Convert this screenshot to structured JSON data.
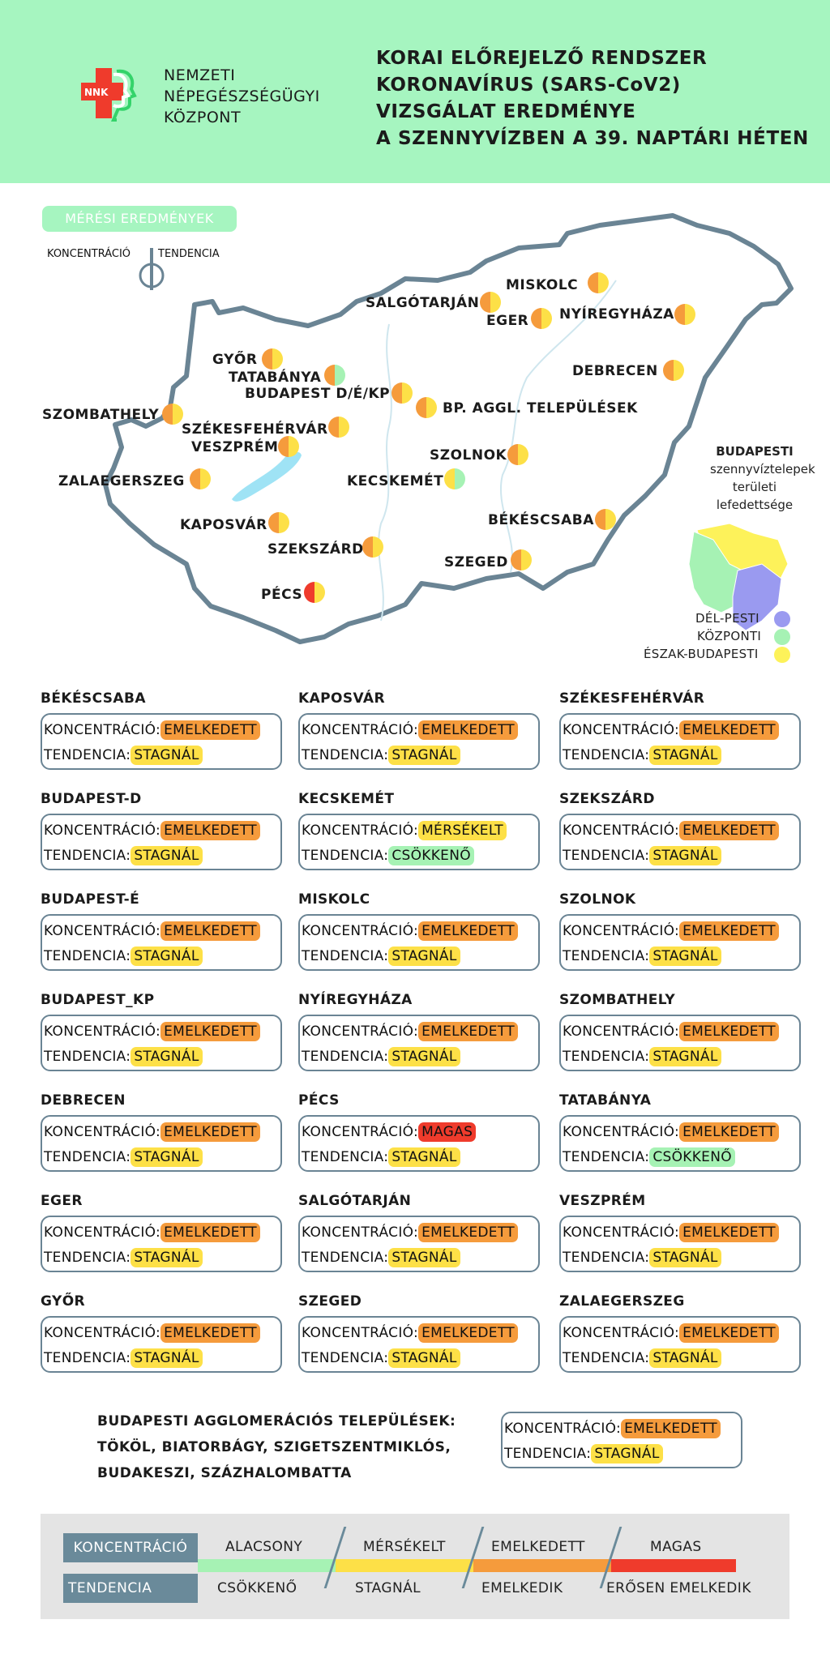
{
  "header": {
    "org_lines": [
      "NEMZETI",
      "NÉPEGÉSZSÉGÜGYI",
      "KÖZPONT"
    ],
    "logo_text": "NNK",
    "title_lines": [
      "KORAI ELŐREJELZŐ RENDSZER",
      "KORONAVÍRUS (SARS-CoV2)",
      "VIZSGÁLAT EREDMÉNYE",
      "A SZENNYVÍZBEN A 39. NAPTÁRI HÉTEN"
    ]
  },
  "colors": {
    "alacsony": "#a6f2b4",
    "merseklet": "#fde047",
    "emelkedett": "#f59b3c",
    "magas": "#ef3b2c",
    "header": "#a6f5c0",
    "border": "#6a8494"
  },
  "map": {
    "meres_label": "MÉRÉSI EREDMÉNYEK",
    "koncentracio_label": "KONCENTRÁCIÓ",
    "tendencia_label": "TENDENCIA",
    "cities": [
      {
        "name": "MISKOLC",
        "c": "emelkedett",
        "t": "merseklet"
      },
      {
        "name": "SALGÓTARJÁN",
        "c": "emelkedett",
        "t": "merseklet"
      },
      {
        "name": "EGER",
        "c": "emelkedett",
        "t": "merseklet"
      },
      {
        "name": "NYÍREGYHÁZA",
        "c": "emelkedett",
        "t": "merseklet"
      },
      {
        "name": "GYŐR",
        "c": "emelkedett",
        "t": "merseklet"
      },
      {
        "name": "TATABÁNYA",
        "c": "emelkedett",
        "t": "alacsony"
      },
      {
        "name": "DEBRECEN",
        "c": "emelkedett",
        "t": "merseklet"
      },
      {
        "name": "BUDAPEST D/É/KP",
        "c": "emelkedett",
        "t": "merseklet"
      },
      {
        "name": "BP. AGGL. TELEPÜLÉSEK",
        "c": "emelkedett",
        "t": "merseklet"
      },
      {
        "name": "SZOMBATHELY",
        "c": "emelkedett",
        "t": "merseklet"
      },
      {
        "name": "SZÉKESFEHÉRVÁR",
        "c": "emelkedett",
        "t": "merseklet"
      },
      {
        "name": "VESZPRÉM",
        "c": "emelkedett",
        "t": "merseklet"
      },
      {
        "name": "SZOLNOK",
        "c": "emelkedett",
        "t": "merseklet"
      },
      {
        "name": "ZALAEGERSZEG",
        "c": "emelkedett",
        "t": "merseklet"
      },
      {
        "name": "KECSKEMÉT",
        "c": "merseklet",
        "t": "alacsony"
      },
      {
        "name": "BÉKÉSCSABA",
        "c": "emelkedett",
        "t": "merseklet"
      },
      {
        "name": "KAPOSVÁR",
        "c": "emelkedett",
        "t": "merseklet"
      },
      {
        "name": "SZEKSZÁRD",
        "c": "emelkedett",
        "t": "merseklet"
      },
      {
        "name": "SZEGED",
        "c": "emelkedett",
        "t": "merseklet"
      },
      {
        "name": "PÉCS",
        "c": "magas",
        "t": "merseklet"
      }
    ],
    "budapest_title_bold": "BUDAPESTI",
    "budapest_title_lines": [
      "szennyvíztelepek",
      "területi",
      "lefedettsége"
    ],
    "budapest_legend": [
      {
        "label": "DÉL-PESTI",
        "color": "#9a9af0"
      },
      {
        "label": "KÖZPONTI",
        "color": "#a6f2b4"
      },
      {
        "label": "ÉSZAK-BUDAPESTI",
        "color": "#fdf25a"
      }
    ]
  },
  "cards": [
    {
      "name": "BÉKÉSCSABA",
      "c_label": "KONCENTRÁCIÓ:",
      "c": "EMELKEDETT",
      "t_label": "TENDENCIA:",
      "t": "STAGNÁL"
    },
    {
      "name": "KAPOSVÁR",
      "c_label": "KONCENTRÁCIÓ:",
      "c": "EMELKEDETT",
      "t_label": "TENDENCIA:",
      "t": "STAGNÁL"
    },
    {
      "name": "SZÉKESFEHÉRVÁR",
      "c_label": "KONCENTRÁCIÓ:",
      "c": "EMELKEDETT",
      "t_label": "TENDENCIA:",
      "t": "STAGNÁL"
    },
    {
      "name": "BUDAPEST-D",
      "c_label": "KONCENTRÁCIÓ:",
      "c": "EMELKEDETT",
      "t_label": "TENDENCIA:",
      "t": "STAGNÁL"
    },
    {
      "name": "KECSKEMÉT",
      "c_label": "KONCENTRÁCIÓ:",
      "c": "MÉRSÉKELT",
      "t_label": "TENDENCIA:",
      "t": "CSÖKKENŐ"
    },
    {
      "name": "SZEKSZÁRD",
      "c_label": "KONCENTRÁCIÓ:",
      "c": "EMELKEDETT",
      "t_label": "TENDENCIA:",
      "t": "STAGNÁL"
    },
    {
      "name": "BUDAPEST-É",
      "c_label": "KONCENTRÁCIÓ:",
      "c": "EMELKEDETT",
      "t_label": "TENDENCIA:",
      "t": "STAGNÁL"
    },
    {
      "name": "MISKOLC",
      "c_label": "KONCENTRÁCIÓ:",
      "c": "EMELKEDETT",
      "t_label": "TENDENCIA:",
      "t": "STAGNÁL"
    },
    {
      "name": "SZOLNOK",
      "c_label": "KONCENTRÁCIÓ:",
      "c": "EMELKEDETT",
      "t_label": "TENDENCIA:",
      "t": "STAGNÁL"
    },
    {
      "name": "BUDAPEST_KP",
      "c_label": "KONCENTRÁCIÓ:",
      "c": "EMELKEDETT",
      "t_label": "TENDENCIA:",
      "t": "STAGNÁL"
    },
    {
      "name": "NYÍREGYHÁZA",
      "c_label": "KONCENTRÁCIÓ:",
      "c": "EMELKEDETT",
      "t_label": "TENDENCIA:",
      "t": "STAGNÁL"
    },
    {
      "name": "SZOMBATHELY",
      "c_label": "KONCENTRÁCIÓ:",
      "c": "EMELKEDETT",
      "t_label": "TENDENCIA:",
      "t": "STAGNÁL"
    },
    {
      "name": "DEBRECEN",
      "c_label": "KONCENTRÁCIÓ:",
      "c": "EMELKEDETT",
      "t_label": "TENDENCIA:",
      "t": "STAGNÁL"
    },
    {
      "name": "PÉCS",
      "c_label": "KONCENTRÁCIÓ:",
      "c": "MAGAS",
      "t_label": "TENDENCIA:",
      "t": "STAGNÁL"
    },
    {
      "name": "TATABÁNYA",
      "c_label": "KONCENTRÁCIÓ:",
      "c": "EMELKEDETT",
      "t_label": "TENDENCIA:",
      "t": "CSÖKKENŐ"
    },
    {
      "name": "EGER",
      "c_label": "KONCENTRÁCIÓ:",
      "c": "EMELKEDETT",
      "t_label": "TENDENCIA:",
      "t": "STAGNÁL"
    },
    {
      "name": "SALGÓTARJÁN",
      "c_label": "KONCENTRÁCIÓ:",
      "c": "EMELKEDETT",
      "t_label": "TENDENCIA:",
      "t": "STAGNÁL"
    },
    {
      "name": "VESZPRÉM",
      "c_label": "KONCENTRÁCIÓ:",
      "c": "EMELKEDETT",
      "t_label": "TENDENCIA:",
      "t": "STAGNÁL"
    },
    {
      "name": "GYŐR",
      "c_label": "KONCENTRÁCIÓ:",
      "c": "EMELKEDETT",
      "t_label": "TENDENCIA:",
      "t": "STAGNÁL"
    },
    {
      "name": "SZEGED",
      "c_label": "KONCENTRÁCIÓ:",
      "c": "EMELKEDETT",
      "t_label": "TENDENCIA:",
      "t": "STAGNÁL"
    },
    {
      "name": "ZALAEGERSZEG",
      "c_label": "KONCENTRÁCIÓ:",
      "c": "EMELKEDETT",
      "t_label": "TENDENCIA:",
      "t": "STAGNÁL"
    }
  ],
  "agglomeration": {
    "title_lines": [
      "BUDAPESTI AGGLOMERÁCIÓS TELEPÜLÉSEK:",
      "TÖKÖL, BIATORBÁGY, SZIGETSZENTMIKLÓS,",
      "BUDAKESZI, SZÁZHALOMBATTA"
    ],
    "c_label": "KONCENTRÁCIÓ:",
    "c": "EMELKEDETT",
    "t_label": "TENDENCIA:",
    "t": "STAGNÁL"
  },
  "legend": {
    "koncentracio_label": "KONCENTRÁCIÓ",
    "tendencia_label": "TENDENCIA",
    "levels": [
      "ALACSONY",
      "MÉRSÉKELT",
      "EMELKEDETT",
      "MAGAS"
    ],
    "trends": [
      "CSÖKKENŐ",
      "STAGNÁL",
      "EMELKEDIK",
      "ERŐSEN EMELKEDIK"
    ]
  }
}
